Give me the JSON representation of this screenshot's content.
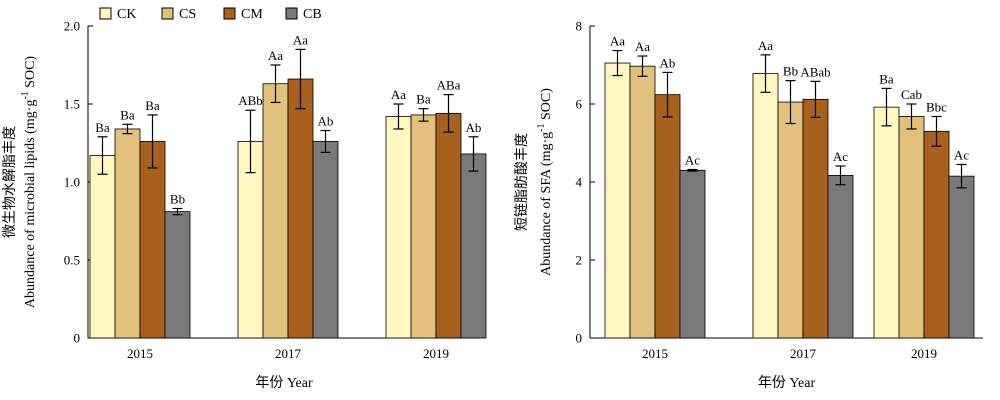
{
  "legend": {
    "items": [
      {
        "name": "CK",
        "color": "#FFF7C2"
      },
      {
        "name": "CS",
        "color": "#E2C17C"
      },
      {
        "name": "CM",
        "color": "#A8601E"
      },
      {
        "name": "CB",
        "color": "#7A7A7A"
      }
    ],
    "placement": "top-left"
  },
  "chart_data": [
    {
      "type": "bar",
      "title": "",
      "xlabel": "年份 Year",
      "ylabel_cn": "微生物水解脂丰度",
      "ylabel_en": "Abundance of microbial lipids (mg·g",
      "ylabel_sup": "-1",
      "ylabel_tail": " SOC)",
      "categories": [
        "2015",
        "2017",
        "2019"
      ],
      "ylim": [
        0,
        2.0
      ],
      "yticks": [
        "0",
        "0.5",
        "1.0",
        "1.5",
        "2.0"
      ],
      "ytick_values": [
        0,
        0.5,
        1.0,
        1.5,
        2.0
      ],
      "grid": false,
      "series": [
        {
          "name": "CK",
          "values": [
            1.17,
            1.26,
            1.42
          ],
          "errors": [
            0.12,
            0.2,
            0.08
          ],
          "labels": [
            "Ba",
            "ABb",
            "Aa"
          ]
        },
        {
          "name": "CS",
          "values": [
            1.34,
            1.63,
            1.43
          ],
          "errors": [
            0.03,
            0.12,
            0.04
          ],
          "labels": [
            "Ba",
            "Aa",
            "Ba"
          ]
        },
        {
          "name": "CM",
          "values": [
            1.26,
            1.66,
            1.44
          ],
          "errors": [
            0.17,
            0.19,
            0.12
          ],
          "labels": [
            "Ba",
            "Aa",
            "ABa"
          ]
        },
        {
          "name": "CB",
          "values": [
            0.81,
            1.26,
            1.18
          ],
          "errors": [
            0.02,
            0.07,
            0.11
          ],
          "labels": [
            "Bb",
            "Ab",
            "Ab"
          ]
        }
      ]
    },
    {
      "type": "bar",
      "title": "",
      "xlabel": "年份 Year",
      "ylabel_cn": "短链脂肪酸丰度",
      "ylabel_en": "Abundance of SFA (mg·g",
      "ylabel_sup": "-1",
      "ylabel_tail": " SOC)",
      "categories": [
        "2015",
        "2017",
        "2019"
      ],
      "ylim": [
        0,
        8
      ],
      "yticks": [
        "0",
        "2",
        "4",
        "6",
        "8"
      ],
      "ytick_values": [
        0,
        2,
        4,
        6,
        8
      ],
      "grid": false,
      "series": [
        {
          "name": "CK",
          "values": [
            7.05,
            6.78,
            5.92
          ],
          "errors": [
            0.32,
            0.48,
            0.48
          ],
          "labels": [
            "Aa",
            "Aa",
            "Ba"
          ]
        },
        {
          "name": "CS",
          "values": [
            6.97,
            6.05,
            5.68
          ],
          "errors": [
            0.26,
            0.55,
            0.32
          ],
          "labels": [
            "Aa",
            "Bb",
            "Cab"
          ]
        },
        {
          "name": "CM",
          "values": [
            6.24,
            6.12,
            5.3
          ],
          "errors": [
            0.57,
            0.46,
            0.38
          ],
          "labels": [
            "Ab",
            "ABab",
            "Bbc"
          ]
        },
        {
          "name": "CB",
          "values": [
            4.3,
            4.17,
            4.15
          ],
          "errors": [
            0.02,
            0.24,
            0.3
          ],
          "labels": [
            "Ac",
            "Ac",
            "Ac"
          ]
        }
      ]
    }
  ]
}
